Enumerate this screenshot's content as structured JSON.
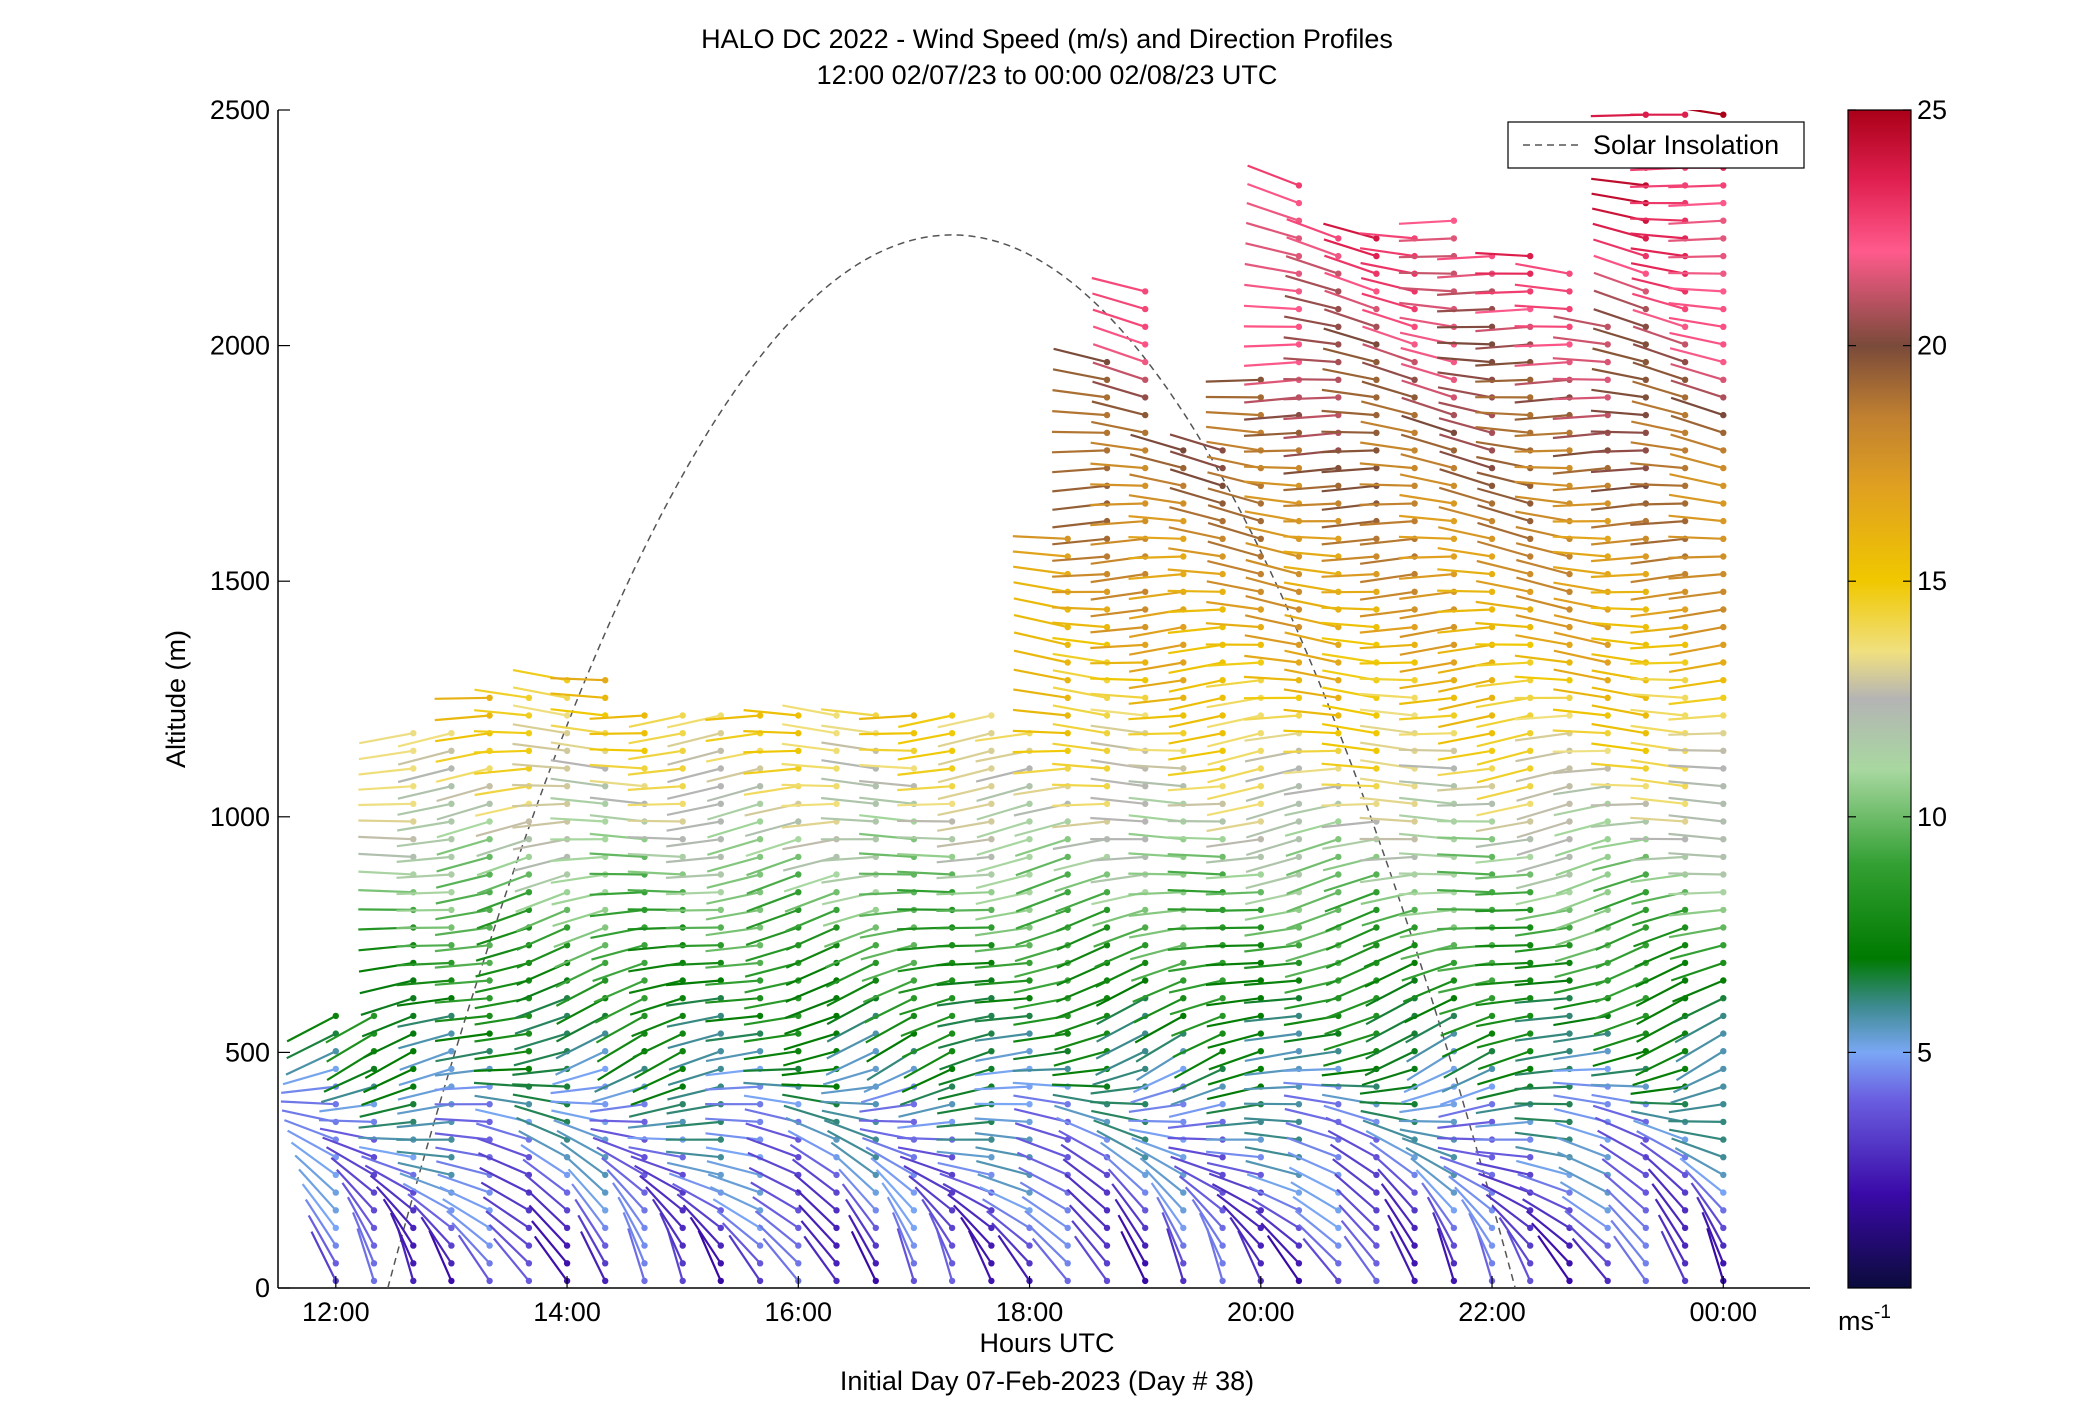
{
  "chart_data": {
    "type": "wind-profile",
    "title": "HALO DC 2022 - Wind Speed (m/s) and Direction Profiles",
    "subtitle": "12:00 02/07/23 to 00:00 02/08/23  UTC",
    "xlabel": "Hours UTC",
    "xlabel2": "Initial Day 07-Feb-2023 (Day # 38)",
    "ylabel": "Altitude (m)",
    "xlim": [
      11.5,
      24.75
    ],
    "ylim": [
      0,
      2500
    ],
    "x_ticks": [
      {
        "value": 12,
        "label": "12:00"
      },
      {
        "value": 14,
        "label": "14:00"
      },
      {
        "value": 16,
        "label": "16:00"
      },
      {
        "value": 18,
        "label": "18:00"
      },
      {
        "value": 20,
        "label": "20:00"
      },
      {
        "value": 22,
        "label": "22:00"
      },
      {
        "value": 24,
        "label": "00:00"
      }
    ],
    "y_ticks": [
      {
        "value": 0,
        "label": "0"
      },
      {
        "value": 500,
        "label": "500"
      },
      {
        "value": 1000,
        "label": "1000"
      },
      {
        "value": 1500,
        "label": "1500"
      },
      {
        "value": 2000,
        "label": "2000"
      },
      {
        "value": 2500,
        "label": "2500"
      }
    ],
    "legend": {
      "label": "Solar Insolation",
      "position": "top-right",
      "line_color": "#555555",
      "line_style": "dashed"
    },
    "colorbar": {
      "range": [
        0,
        25
      ],
      "unit_label": "ms",
      "unit_exponent": "-1",
      "ticks": [
        {
          "value": 5,
          "label": "5"
        },
        {
          "value": 10,
          "label": "10"
        },
        {
          "value": 15,
          "label": "15"
        },
        {
          "value": 20,
          "label": "20"
        },
        {
          "value": 25,
          "label": "25"
        }
      ],
      "stops": [
        {
          "value": 0,
          "color": "#0b0b3b"
        },
        {
          "value": 2,
          "color": "#3a0aa8"
        },
        {
          "value": 4,
          "color": "#6a5ee0"
        },
        {
          "value": 5,
          "color": "#7aa7f5"
        },
        {
          "value": 6,
          "color": "#3c8a8e"
        },
        {
          "value": 7,
          "color": "#007a00"
        },
        {
          "value": 9,
          "color": "#33a033"
        },
        {
          "value": 11,
          "color": "#a8d8a0"
        },
        {
          "value": 12.5,
          "color": "#b4b4b4"
        },
        {
          "value": 13.5,
          "color": "#f0e080"
        },
        {
          "value": 15,
          "color": "#f0c800"
        },
        {
          "value": 17,
          "color": "#e0a020"
        },
        {
          "value": 18.5,
          "color": "#c08030"
        },
        {
          "value": 20,
          "color": "#7a4a3a"
        },
        {
          "value": 22,
          "color": "#ff5a8c"
        },
        {
          "value": 23.5,
          "color": "#e02050"
        },
        {
          "value": 25,
          "color": "#aa0018"
        }
      ]
    },
    "solar_insolation": {
      "start_hour": 12.45,
      "peak_hour": 17.33,
      "end_hour": 22.2,
      "peak_altitude": 2235
    },
    "profiles": {
      "times": [
        12.0,
        12.33,
        12.67,
        13.0,
        13.33,
        13.67,
        14.0,
        14.33,
        14.67,
        15.0,
        15.33,
        15.67,
        16.0,
        16.33,
        16.67,
        17.0,
        17.33,
        17.67,
        18.0,
        18.33,
        18.67,
        19.0,
        19.33,
        19.67,
        20.0,
        20.33,
        20.67,
        21.0,
        21.33,
        21.67,
        22.0,
        22.33,
        22.67,
        23.0,
        23.33,
        23.67,
        24.0
      ],
      "top_altitude": [
        600,
        600,
        1200,
        1200,
        1280,
        1280,
        1320,
        1300,
        1250,
        1250,
        1250,
        1250,
        1250,
        1250,
        1250,
        1250,
        1250,
        1250,
        1210,
        1600,
        2000,
        2130,
        1800,
        1800,
        1950,
        2350,
        2230,
        2230,
        2230,
        2280,
        2200,
        2200,
        2180,
        2050,
        2500,
        2500,
        2500
      ],
      "altitude_step": 37.5,
      "speed_model": [
        {
          "altitude": 0,
          "speed": 3.0
        },
        {
          "altitude": 400,
          "speed": 5.5
        },
        {
          "altitude": 800,
          "speed": 9.5
        },
        {
          "altitude": 1100,
          "speed": 13.5
        },
        {
          "altitude": 1400,
          "speed": 16.5
        },
        {
          "altitude": 1800,
          "speed": 19.5
        },
        {
          "altitude": 2200,
          "speed": 22.5
        },
        {
          "altitude": 2500,
          "speed": 24.5
        }
      ],
      "direction_model": [
        {
          "altitude": 0,
          "direction_deg": 335
        },
        {
          "altitude": 500,
          "direction_deg": 250
        },
        {
          "altitude": 1000,
          "direction_deg": 265
        },
        {
          "altitude": 1600,
          "direction_deg": 275
        },
        {
          "altitude": 2500,
          "direction_deg": 280
        }
      ]
    }
  }
}
